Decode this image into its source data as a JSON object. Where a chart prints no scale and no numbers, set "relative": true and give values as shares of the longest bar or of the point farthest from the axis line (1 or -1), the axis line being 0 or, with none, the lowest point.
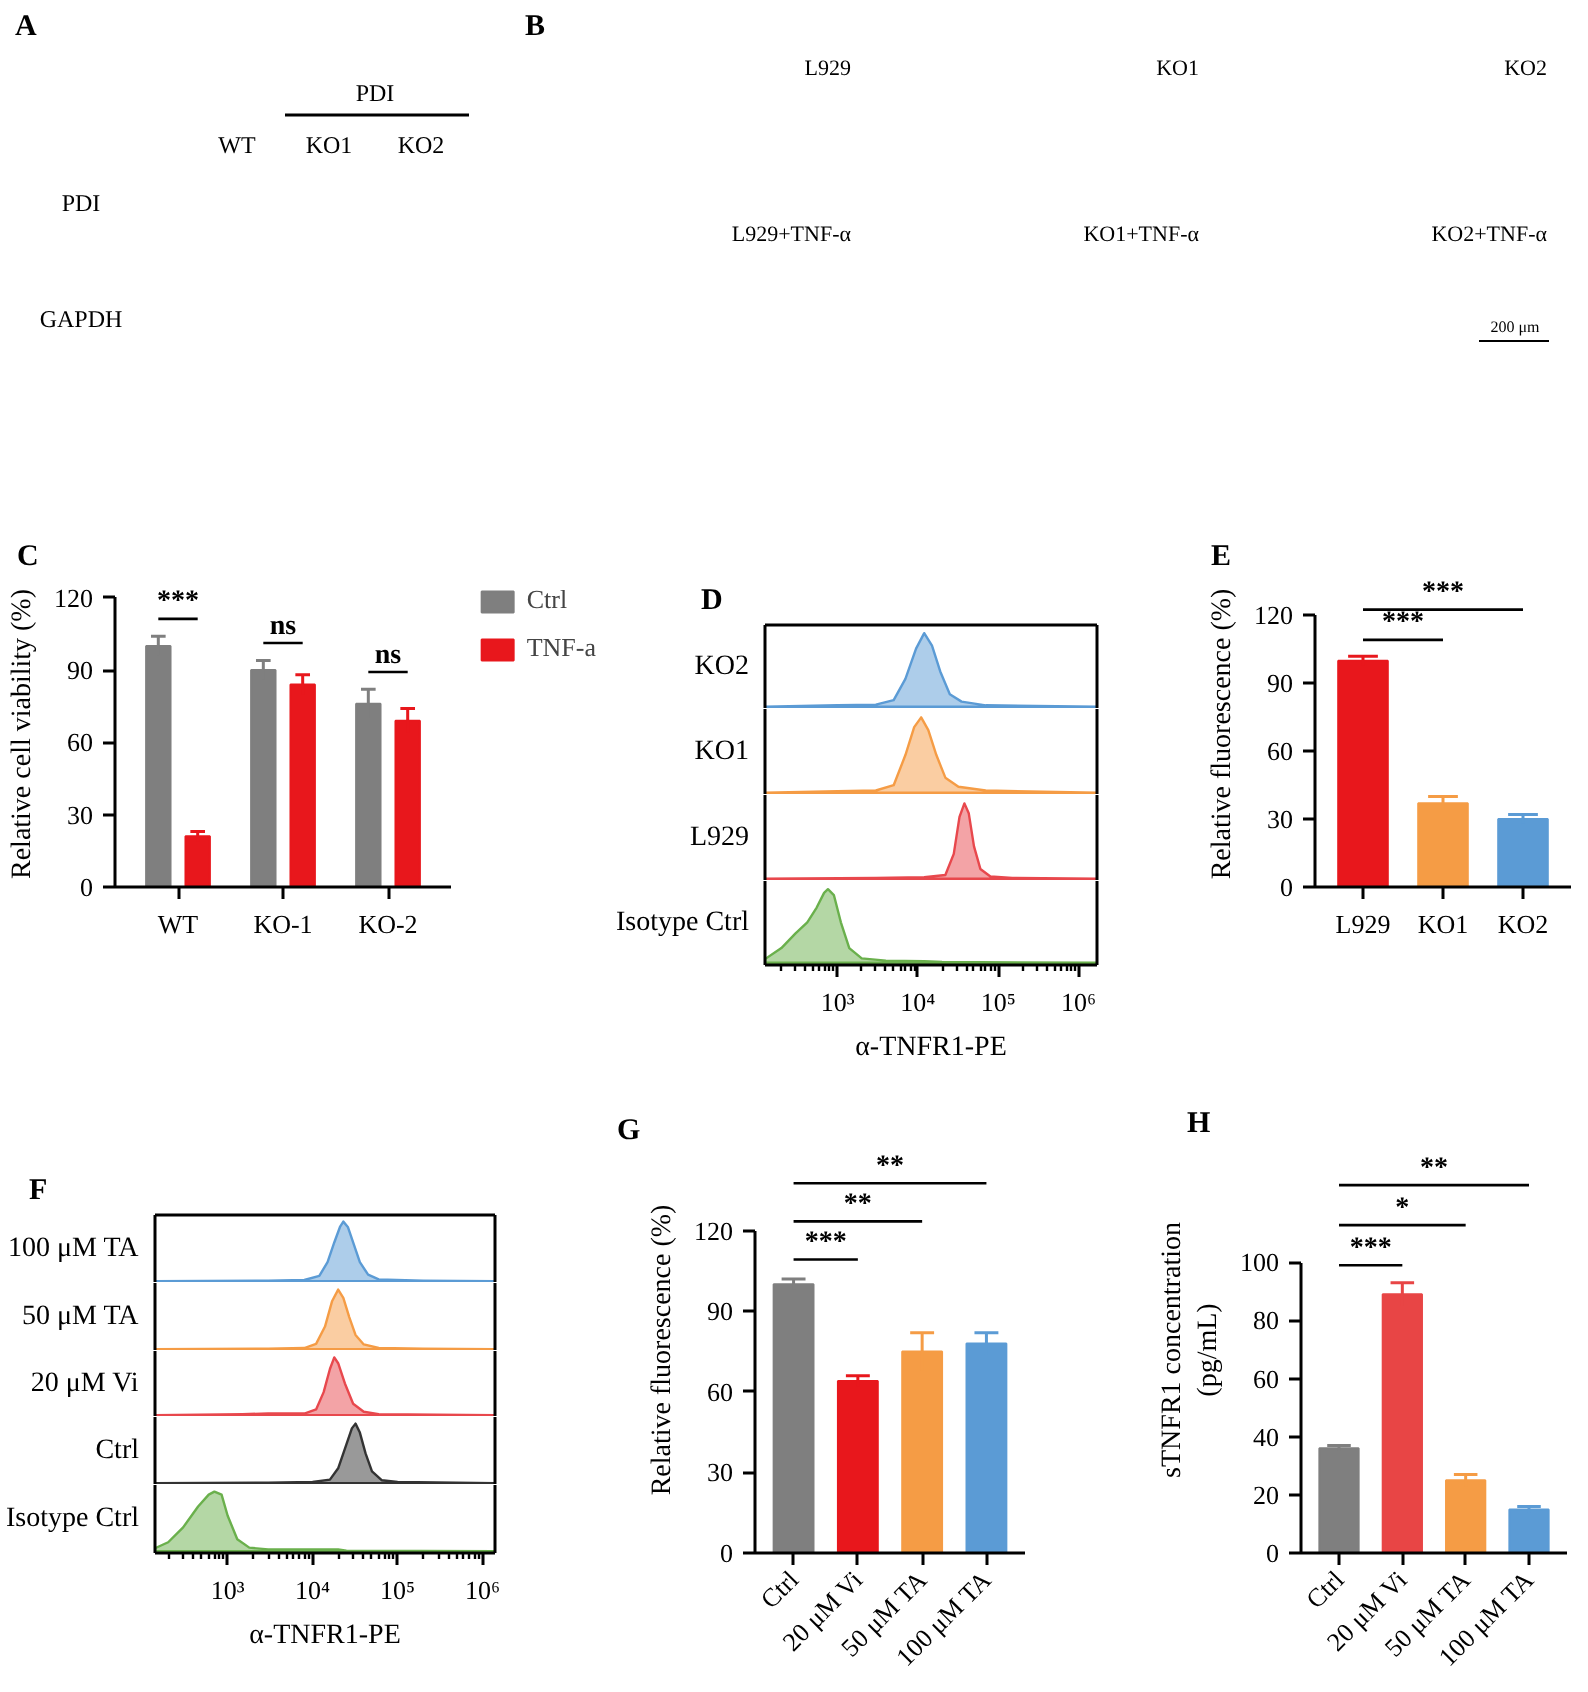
{
  "chart_data": [
    {
      "type": "other",
      "title": "A",
      "categories": [
        "WT",
        "KO1",
        "KO2"
      ],
      "annotations": [
        "PDI",
        "PDI",
        "GAPDH"
      ]
    },
    {
      "type": "other",
      "title": "B",
      "categories": [
        "L929",
        "KO1",
        "KO2",
        "L929+TNF-α",
        "KO1+TNF-α",
        "KO2+TNF-α"
      ],
      "annotations": [
        "200 μm"
      ]
    },
    {
      "type": "bar",
      "title": "C",
      "categories": [
        "WT",
        "KO-1",
        "KO-2"
      ],
      "ylabel": "Relative cell viability (%)",
      "ylim": [
        0,
        120
      ],
      "yticks": [
        0,
        30,
        60,
        90,
        120
      ],
      "legend": "top right",
      "series": [
        {
          "name": "Ctrl",
          "color": "#7f7f7f",
          "values": [
            100,
            90,
            76
          ],
          "errors": [
            4,
            4,
            6
          ]
        },
        {
          "name": "TNF-a",
          "color": "#e8171c",
          "values": [
            21,
            84,
            69
          ],
          "errors": [
            2,
            4,
            5
          ]
        }
      ],
      "annotations": [
        "***",
        "ns",
        "ns"
      ]
    },
    {
      "type": "area",
      "title": "D",
      "relative": true,
      "log": "x",
      "xlim": [
        125,
        1700000
      ],
      "tick_labels": false,
      "ylabel": "KO2",
      "series": [
        {
          "color": "#5b9bd5",
          "x": [
            125,
            1000,
            3000,
            5000,
            7000,
            9500,
            12000,
            15000,
            19000,
            25000,
            35000,
            70000,
            1700000
          ],
          "values": [
            0,
            0.02,
            0.03,
            0.09,
            0.38,
            0.79,
            1,
            0.83,
            0.48,
            0.17,
            0.07,
            0.02,
            0
          ]
        }
      ]
    },
    {
      "type": "area",
      "relative": true,
      "log": "x",
      "xlim": [
        125,
        1700000
      ],
      "tick_labels": false,
      "ylabel": "KO1",
      "series": [
        {
          "color": "#f59c45",
          "x": [
            125,
            1000,
            3000,
            5000,
            7000,
            9000,
            11000,
            13500,
            17000,
            22000,
            32000,
            70000,
            1700000
          ],
          "values": [
            0,
            0.02,
            0.03,
            0.1,
            0.5,
            0.87,
            1,
            0.83,
            0.5,
            0.2,
            0.08,
            0.03,
            0
          ]
        }
      ]
    },
    {
      "type": "area",
      "relative": true,
      "log": "x",
      "xlim": [
        125,
        1700000
      ],
      "tick_labels": false,
      "ylabel": "L929",
      "series": [
        {
          "color": "#e8484d",
          "x": [
            125,
            3000,
            12000,
            22000,
            28000,
            33000,
            38000,
            43000,
            50000,
            60000,
            80000,
            150000,
            1700000
          ],
          "values": [
            0,
            0.01,
            0.02,
            0.05,
            0.33,
            0.82,
            1,
            0.87,
            0.43,
            0.13,
            0.03,
            0.01,
            0
          ]
        }
      ]
    },
    {
      "type": "area",
      "relative": true,
      "log": "x",
      "xlim": [
        125,
        1700000
      ],
      "xticks": [
        {
          "value": 1000,
          "label": "10³"
        },
        {
          "value": 10000,
          "label": "10⁴"
        },
        {
          "value": 100000,
          "label": "10⁵"
        },
        {
          "value": 1000000,
          "label": "10⁶"
        }
      ],
      "xlabel": "α-TNFR1-PE",
      "tick_labels": "x",
      "ylabel": "Isotype Ctrl",
      "series": [
        {
          "color": "#6ab04c",
          "x": [
            125,
            200,
            300,
            420,
            550,
            680,
            760,
            900,
            1100,
            1400,
            2000,
            4000,
            12000,
            20000,
            1700000
          ],
          "values": [
            0.05,
            0.2,
            0.4,
            0.55,
            0.75,
            0.95,
            1,
            0.92,
            0.55,
            0.2,
            0.06,
            0.03,
            0.02,
            0.01,
            0
          ]
        }
      ]
    },
    {
      "type": "bar",
      "title": "E",
      "categories": [
        "L929",
        "KO1",
        "KO2"
      ],
      "ylabel": "Relative fluorescence (%)",
      "ylim": [
        0,
        120
      ],
      "yticks": [
        0,
        30,
        60,
        90,
        120
      ],
      "values": [
        100,
        37,
        30
      ],
      "errors": [
        2,
        3,
        2
      ],
      "colors": [
        "#e8171c",
        "#f59c45",
        "#5b9bd5"
      ],
      "annotations": [
        "***",
        "***"
      ]
    },
    {
      "type": "area",
      "title": "F",
      "relative": true,
      "log": "x",
      "xlim": [
        140,
        1400000
      ],
      "tick_labels": false,
      "ylabel": "100 μM TA",
      "series": [
        {
          "color": "#5b9bd5",
          "x": [
            140,
            3000,
            8000,
            12000,
            15000,
            18000,
            21000,
            23000,
            26000,
            30000,
            36000,
            45000,
            60000,
            200000,
            1400000
          ],
          "values": [
            0,
            0.01,
            0.02,
            0.09,
            0.32,
            0.65,
            0.91,
            1,
            0.91,
            0.65,
            0.32,
            0.11,
            0.03,
            0.01,
            0
          ]
        }
      ]
    },
    {
      "type": "area",
      "relative": true,
      "log": "x",
      "xlim": [
        140,
        1400000
      ],
      "tick_labels": false,
      "ylabel": "50 μM TA",
      "series": [
        {
          "color": "#f59c45",
          "x": [
            140,
            3000,
            8000,
            11000,
            14000,
            17000,
            20000,
            23000,
            27000,
            32000,
            40000,
            60000,
            200000,
            1400000
          ],
          "values": [
            0,
            0.01,
            0.02,
            0.09,
            0.38,
            0.81,
            1,
            0.86,
            0.54,
            0.24,
            0.08,
            0.02,
            0.01,
            0
          ]
        }
      ]
    },
    {
      "type": "area",
      "relative": true,
      "log": "x",
      "xlim": [
        140,
        1400000
      ],
      "tick_labels": false,
      "ylabel": "20 μM Vi",
      "series": [
        {
          "color": "#e8484d",
          "x": [
            140,
            1500,
            3000,
            8000,
            11000,
            13500,
            16000,
            18000,
            20000,
            24000,
            30000,
            40000,
            60000,
            1400000
          ],
          "values": [
            0,
            0.02,
            0.03,
            0.03,
            0.1,
            0.4,
            0.8,
            1,
            0.9,
            0.55,
            0.2,
            0.06,
            0.02,
            0
          ]
        }
      ]
    },
    {
      "type": "area",
      "relative": true,
      "log": "x",
      "xlim": [
        140,
        1400000
      ],
      "tick_labels": false,
      "ylabel": "Ctrl",
      "series": [
        {
          "color": "#333333",
          "x": [
            140,
            3000,
            10000,
            16000,
            20000,
            25000,
            29000,
            32000,
            36000,
            42000,
            50000,
            65000,
            100000,
            1400000
          ],
          "values": [
            0,
            0.01,
            0.02,
            0.06,
            0.25,
            0.65,
            0.92,
            1,
            0.85,
            0.5,
            0.2,
            0.05,
            0.02,
            0
          ]
        }
      ]
    },
    {
      "type": "area",
      "relative": true,
      "log": "x",
      "xlim": [
        140,
        1400000
      ],
      "xticks": [
        {
          "value": 1000,
          "label": "10³"
        },
        {
          "value": 10000,
          "label": "10⁴"
        },
        {
          "value": 100000,
          "label": "10⁵"
        },
        {
          "value": 1000000,
          "label": "10⁶"
        }
      ],
      "xlabel": "α-TNFR1-PE",
      "tick_labels": "x",
      "ylabel": "Isotype Ctrl",
      "series": [
        {
          "color": "#6ab04c",
          "x": [
            140,
            200,
            300,
            450,
            600,
            700,
            850,
            1000,
            1300,
            1800,
            3000,
            20000,
            25000,
            1400000
          ],
          "values": [
            0.05,
            0.15,
            0.4,
            0.75,
            0.95,
            1,
            0.95,
            0.6,
            0.2,
            0.06,
            0.03,
            0.03,
            0.01,
            0
          ]
        }
      ]
    },
    {
      "type": "bar",
      "title": "G",
      "categories": [
        "Ctrl",
        "20 μM Vi",
        "50 μM TA",
        "100 μM TA"
      ],
      "ylabel": "Relative fluorescence (%)",
      "ylim": [
        0,
        120
      ],
      "yticks": [
        0,
        30,
        60,
        90,
        120
      ],
      "values": [
        100,
        64,
        75,
        78
      ],
      "errors": [
        2,
        2,
        7,
        4
      ],
      "colors": [
        "#7f7f7f",
        "#e8171c",
        "#f59c45",
        "#5b9bd5"
      ],
      "annotations": [
        "***",
        "**",
        "**"
      ]
    },
    {
      "type": "bar",
      "title": "H",
      "categories": [
        "Ctrl",
        "20 μM Vi",
        "50 μM TA",
        "100 μM TA"
      ],
      "ylabel": "sTNFR1 concentration\n(pg/mL)",
      "ylim": [
        0,
        100
      ],
      "yticks": [
        0,
        20,
        40,
        60,
        80,
        100
      ],
      "values": [
        36,
        89,
        25,
        15
      ],
      "errors": [
        1,
        4,
        2,
        1
      ],
      "colors": [
        "#7f7f7f",
        "#e84545",
        "#f59c45",
        "#5b9bd5"
      ],
      "annotations": [
        "***",
        "*",
        "**"
      ]
    }
  ]
}
